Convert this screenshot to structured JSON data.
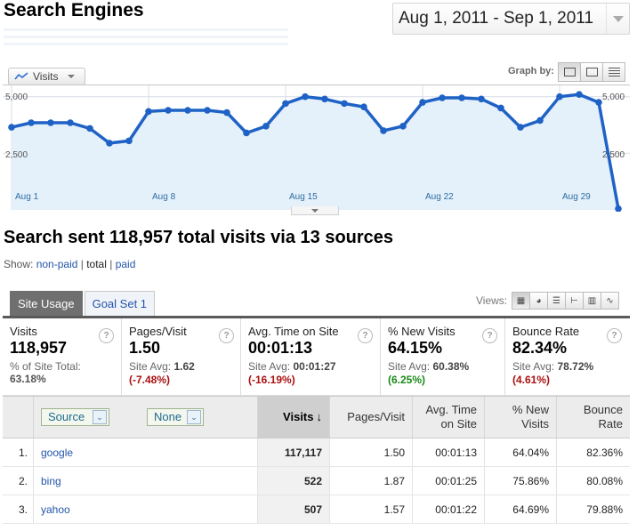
{
  "page": {
    "title": "Search Engines",
    "date_range": "Aug 1, 2011 - Sep 1, 2011"
  },
  "graph": {
    "metric_button": "Visits",
    "graph_by_label": "Graph by:",
    "y_labels_left": [
      "5,000",
      "2,500"
    ],
    "y_labels_right": [
      "5,000",
      "2,500"
    ],
    "x_labels": [
      "Aug 1",
      "Aug 8",
      "Aug 15",
      "Aug 22",
      "Aug 29"
    ]
  },
  "chart_data": {
    "type": "area",
    "series": [
      {
        "name": "Visits",
        "values": [
          3650,
          3850,
          3850,
          3850,
          3600,
          2950,
          3050,
          4350,
          4400,
          4400,
          4400,
          4300,
          3400,
          3700,
          4700,
          5000,
          4900,
          4700,
          4550,
          3500,
          3700,
          4750,
          4950,
          4950,
          4900,
          4500,
          3650,
          3950,
          5000,
          5100,
          4750,
          50
        ]
      }
    ],
    "ylim": [
      0,
      5500
    ],
    "grid": true,
    "color": "#1f62c6"
  },
  "summary": {
    "text": "Search sent 118,957 total visits via 13 sources",
    "show_label": "Show:",
    "filter_nonpaid": "non-paid",
    "filter_total": "total",
    "filter_paid": "paid"
  },
  "tabs": {
    "site_usage": "Site Usage",
    "goal_set": "Goal Set 1",
    "views_label": "Views:"
  },
  "metrics": [
    {
      "label": "Visits",
      "value": "118,957",
      "sub_label": "% of Site Total:",
      "sub_value": "63.18%",
      "delta": ""
    },
    {
      "label": "Pages/Visit",
      "value": "1.50",
      "sub_label": "Site Avg:",
      "sub_value": "1.62",
      "delta": "(-7.48%)"
    },
    {
      "label": "Avg. Time on Site",
      "value": "00:01:13",
      "sub_label": "Site Avg:",
      "sub_value": "00:01:27",
      "delta": "(-16.19%)"
    },
    {
      "label": "% New Visits",
      "value": "64.15%",
      "sub_label": "Site Avg:",
      "sub_value": "60.38%",
      "delta": "(6.25%)"
    },
    {
      "label": "Bounce Rate",
      "value": "82.34%",
      "sub_label": "Site Avg:",
      "sub_value": "78.72%",
      "delta": "(4.61%)"
    }
  ],
  "table": {
    "dim1": "Source",
    "dim2": "None",
    "headers": {
      "visits": "Visits",
      "pages_visit": "Pages/Visit",
      "avg_time_1": "Avg. Time",
      "avg_time_2": "on Site",
      "new_visits_1": "% New",
      "new_visits_2": "Visits",
      "bounce_1": "Bounce",
      "bounce_2": "Rate"
    },
    "rows": [
      {
        "idx": "1.",
        "source": "google",
        "visits": "117,117",
        "ppv": "1.50",
        "avg": "00:01:13",
        "new": "64.04%",
        "bounce": "82.36%"
      },
      {
        "idx": "2.",
        "source": "bing",
        "visits": "522",
        "ppv": "1.87",
        "avg": "00:01:25",
        "new": "75.86%",
        "bounce": "80.08%"
      },
      {
        "idx": "3.",
        "source": "yahoo",
        "visits": "507",
        "ppv": "1.57",
        "avg": "00:01:22",
        "new": "64.69%",
        "bounce": "79.88%"
      }
    ]
  }
}
